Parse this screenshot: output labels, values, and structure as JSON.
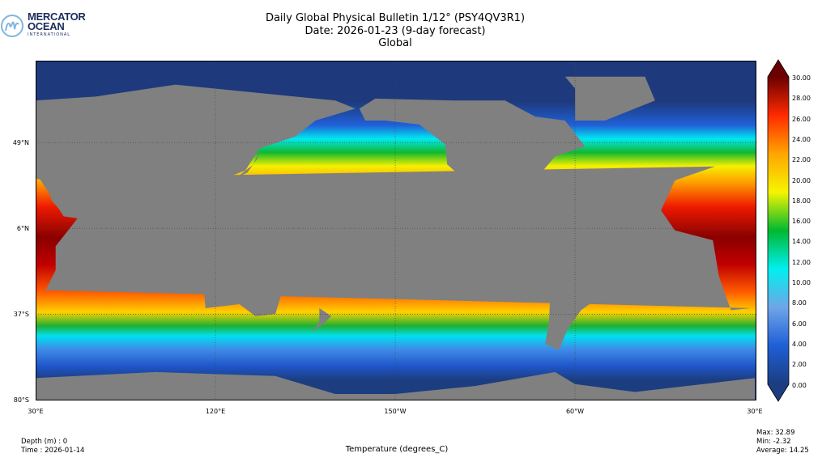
{
  "logo": {
    "line1": "MERCATOR",
    "line2": "OCEAN",
    "line3": "INTERNATIONAL",
    "color": "#1c2c5b",
    "accent": "#7fb6e0"
  },
  "title": {
    "line1": "Daily Global Physical Bulletin 1/12° (PSY4QV3R1)",
    "line2": "Date: 2026-01-23 (9-day forecast)",
    "line3": "Global"
  },
  "map": {
    "variable": "Sea surface temperature",
    "land_color": "#808080",
    "lat_labels": [
      "49°N",
      "6°N",
      "37°S",
      "80°S"
    ],
    "lon_labels": [
      "30°E",
      "120°E",
      "150°W",
      "60°W",
      "30°E"
    ]
  },
  "colorbar": {
    "min": 0,
    "max": 30,
    "labels": [
      "30.00",
      "28.00",
      "26.00",
      "24.00",
      "22.00",
      "20.00",
      "18.00",
      "16.00",
      "14.00",
      "12.00",
      "10.00",
      "8.00",
      "6.00",
      "4.00",
      "2.00",
      "0.00"
    ],
    "colors": [
      "#1c3d80",
      "#1f5fd6",
      "#6fa5e8",
      "#00f0f0",
      "#00b830",
      "#f5f500",
      "#ffa500",
      "#ff2a00",
      "#6b0000"
    ]
  },
  "footer": {
    "depth": "Depth (m) : 0",
    "time": "Time : 2026-01-14",
    "xlabel": "Temperature (degrees_C)",
    "max": "Max: 32.89",
    "min": "Min: -2.32",
    "average": "Average: 14.25"
  }
}
